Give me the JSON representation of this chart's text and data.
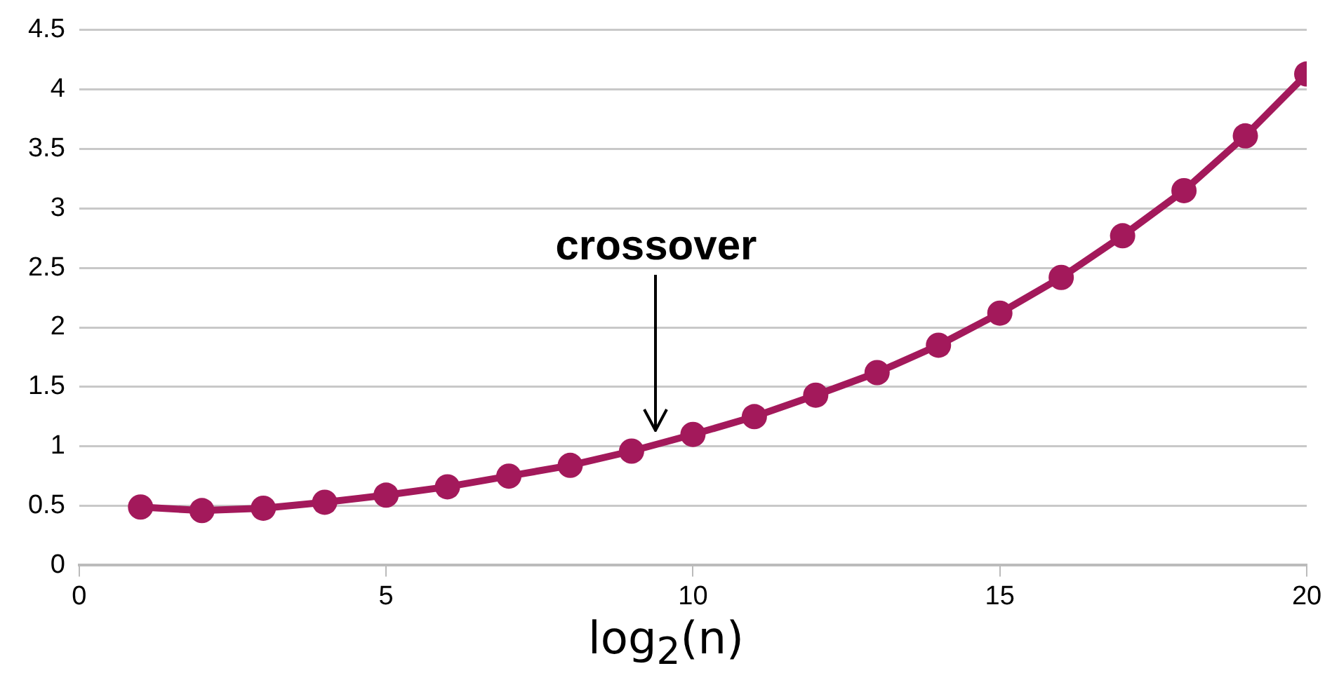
{
  "chart_data": {
    "type": "line",
    "xlabel": "log$_{2}$(n)",
    "x": [
      1,
      2,
      3,
      4,
      5,
      6,
      7,
      8,
      9,
      10,
      11,
      12,
      13,
      14,
      15,
      16,
      17,
      18,
      19,
      20
    ],
    "series": [
      {
        "color": "#a3195b",
        "values": [
          0.49,
          0.46,
          0.48,
          0.53,
          0.59,
          0.66,
          0.75,
          0.84,
          0.96,
          1.1,
          1.25,
          1.43,
          1.62,
          1.85,
          2.12,
          2.42,
          2.77,
          3.15,
          3.61,
          4.13
        ]
      }
    ],
    "xlim": [
      0,
      20
    ],
    "xticks": [
      0,
      5,
      10,
      15,
      20
    ],
    "ylim": [
      0,
      4.5
    ],
    "yticks": [
      0,
      0.5,
      1,
      1.5,
      2,
      2.5,
      3,
      3.5,
      4,
      4.5
    ],
    "grid": "y",
    "legend": false,
    "marker": "circle",
    "line_style": "solid",
    "annotations": [
      "crossover"
    ]
  }
}
